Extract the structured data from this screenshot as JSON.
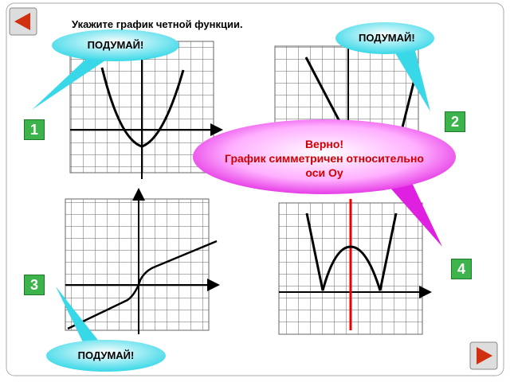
{
  "title": "Укажите график четной функции.",
  "options": [
    {
      "label": "1",
      "hint": "ПОДУМАЙ!"
    },
    {
      "label": "2",
      "hint": "ПОДУМАЙ!"
    },
    {
      "label": "3",
      "hint": "ПОДУМАЙ!"
    },
    {
      "label": "4"
    }
  ],
  "feedback": {
    "title": "Верно!",
    "text": "График симметричен относительно оси Оу"
  }
}
